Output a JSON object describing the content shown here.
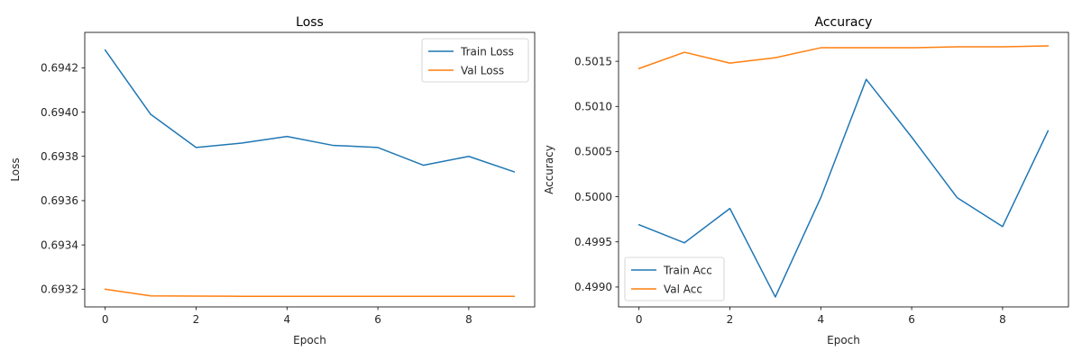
{
  "chart_data": [
    {
      "type": "line",
      "title": "Loss",
      "xlabel": "Epoch",
      "ylabel": "Loss",
      "xlim": [
        -0.45,
        9.45
      ],
      "ylim": [
        0.69312,
        0.69436
      ],
      "xticks": [
        0,
        2,
        4,
        6,
        8
      ],
      "yticks": [
        0.6932,
        0.6934,
        0.6936,
        0.6938,
        0.694,
        0.6942
      ],
      "ytick_labels": [
        "0.6932",
        "0.6934",
        "0.6936",
        "0.6938",
        "0.6940",
        "0.6942"
      ],
      "legend": "upper right",
      "x": [
        0,
        1,
        2,
        3,
        4,
        5,
        6,
        7,
        8,
        9
      ],
      "series": [
        {
          "name": "Train Loss",
          "color": "#1f77b4",
          "values": [
            0.69428,
            0.69399,
            0.69384,
            0.69386,
            0.69389,
            0.69385,
            0.69384,
            0.69376,
            0.6938,
            0.69373
          ]
        },
        {
          "name": "Val Loss",
          "color": "#ff7f0e",
          "values": [
            0.6932,
            0.69317,
            0.693169,
            0.693168,
            0.693168,
            0.693168,
            0.693168,
            0.693168,
            0.693168,
            0.693168
          ]
        }
      ]
    },
    {
      "type": "line",
      "title": "Accuracy",
      "xlabel": "Epoch",
      "ylabel": "Accuracy",
      "xlim": [
        -0.45,
        9.45
      ],
      "ylim": [
        0.49878,
        0.50182
      ],
      "xticks": [
        0,
        2,
        4,
        6,
        8
      ],
      "yticks": [
        0.499,
        0.4995,
        0.5,
        0.5005,
        0.501,
        0.5015
      ],
      "ytick_labels": [
        "0.4990",
        "0.4995",
        "0.5000",
        "0.5005",
        "0.5010",
        "0.5015"
      ],
      "legend": "lower left",
      "x": [
        0,
        1,
        2,
        3,
        4,
        5,
        6,
        7,
        8,
        9
      ],
      "series": [
        {
          "name": "Train Acc",
          "color": "#1f77b4",
          "values": [
            0.49969,
            0.49949,
            0.49987,
            0.49889,
            0.49999,
            0.5013,
            0.50066,
            0.49999,
            0.49967,
            0.50073
          ]
        },
        {
          "name": "Val Acc",
          "color": "#ff7f0e",
          "values": [
            0.50142,
            0.5016,
            0.50148,
            0.50154,
            0.50165,
            0.50165,
            0.50165,
            0.50166,
            0.50166,
            0.50167
          ]
        }
      ]
    }
  ]
}
